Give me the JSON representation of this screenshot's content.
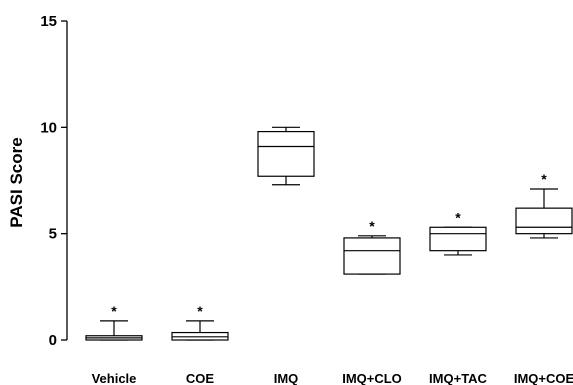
{
  "chart_data": {
    "type": "box",
    "title": "",
    "xlabel": "",
    "ylabel": "PASI Score",
    "ylim": [
      0,
      15
    ],
    "yticks": [
      0,
      5,
      10,
      15
    ],
    "ytick_labels": [
      "0",
      "5",
      "10",
      "15"
    ],
    "grid": false,
    "legend": "none",
    "categories": [
      "Vehicle",
      "COE",
      "IMQ",
      "IMQ+CLO",
      "IMQ+TAC",
      "IMQ+COE"
    ],
    "boxes": [
      {
        "min": 0.0,
        "q1": 0.0,
        "median": 0.1,
        "q3": 0.2,
        "max": 0.9,
        "annotation": "*"
      },
      {
        "min": 0.0,
        "q1": 0.0,
        "median": 0.15,
        "q3": 0.35,
        "max": 0.9,
        "annotation": "*"
      },
      {
        "min": 7.3,
        "q1": 7.7,
        "median": 9.1,
        "q3": 9.8,
        "max": 10.0,
        "annotation": ""
      },
      {
        "min": 3.1,
        "q1": 3.1,
        "median": 4.2,
        "q3": 4.8,
        "max": 4.9,
        "annotation": "*"
      },
      {
        "min": 4.0,
        "q1": 4.2,
        "median": 5.0,
        "q3": 5.3,
        "max": 5.3,
        "annotation": "*"
      },
      {
        "min": 4.8,
        "q1": 5.0,
        "median": 5.3,
        "q3": 6.2,
        "max": 7.1,
        "annotation": "*"
      }
    ]
  }
}
